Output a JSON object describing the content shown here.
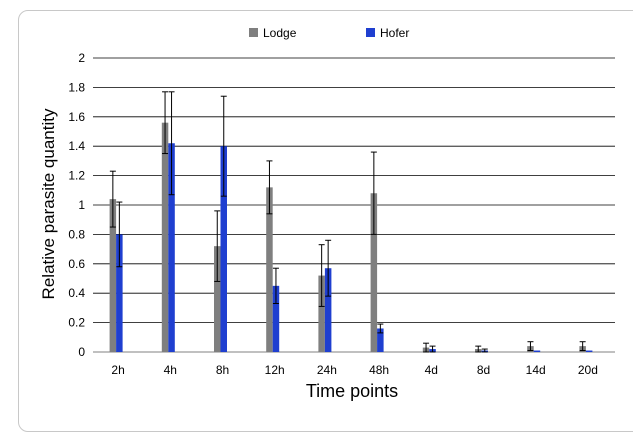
{
  "chart_data": {
    "type": "bar",
    "categories": [
      "2h",
      "4h",
      "8h",
      "12h",
      "24h",
      "48h",
      "4d",
      "8d",
      "14d",
      "20d"
    ],
    "series": [
      {
        "name": "Lodge",
        "color": "#7f7f7f",
        "values": [
          1.04,
          1.56,
          0.72,
          1.12,
          0.52,
          1.08,
          0.03,
          0.02,
          0.04,
          0.04
        ],
        "error": [
          0.19,
          0.21,
          0.24,
          0.18,
          0.21,
          0.28,
          0.03,
          0.02,
          0.03,
          0.03
        ]
      },
      {
        "name": "Hofer",
        "color": "#1f3fd0",
        "values": [
          0.8,
          1.42,
          1.4,
          0.45,
          0.57,
          0.16,
          0.02,
          0.01,
          0.01,
          0.01
        ],
        "error": [
          0.22,
          0.35,
          0.34,
          0.12,
          0.19,
          0.03,
          0.02,
          0.01,
          0.0,
          0.0
        ]
      }
    ],
    "xlabel": "Time points",
    "ylabel": "Relative parasite quantity",
    "ylim": [
      0,
      2
    ],
    "yticks": [
      "0",
      "0.2",
      "0.4",
      "0.6",
      "0.8",
      "1",
      "1.2",
      "1.4",
      "1.6",
      "1.8",
      "2"
    ],
    "grid": true,
    "legend_position": "top-center"
  }
}
